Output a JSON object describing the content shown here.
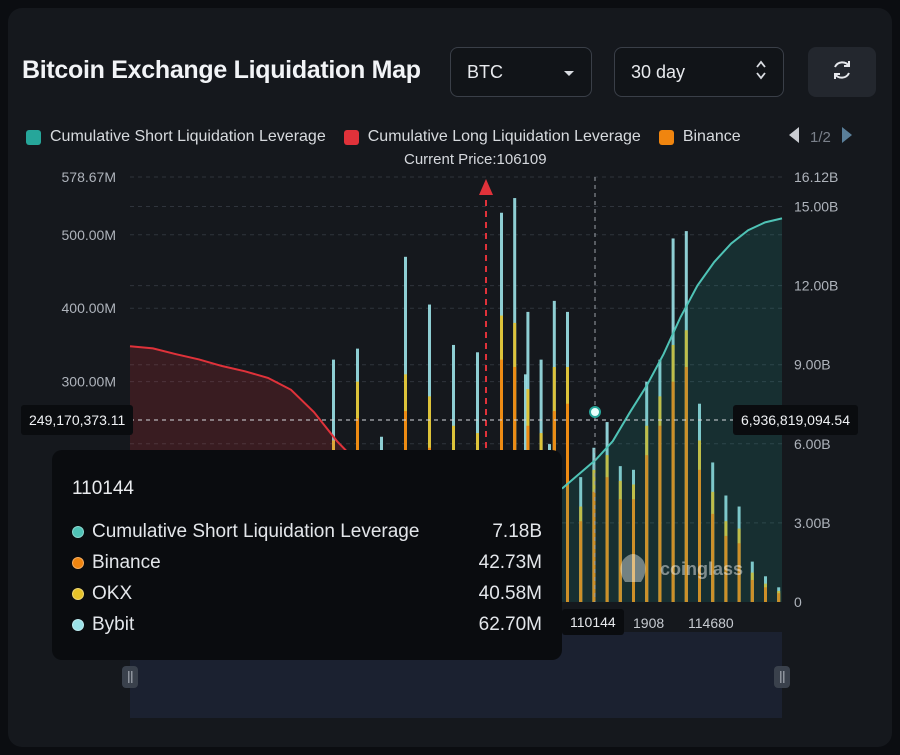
{
  "header": {
    "title": "Bitcoin Exchange Liquidation Map",
    "asset_select": "BTC",
    "range_select": "30 day"
  },
  "legend": {
    "items": [
      {
        "label": "Cumulative Short Liquidation Leverage",
        "color": "#26a69a"
      },
      {
        "label": "Cumulative Long Liquidation Leverage",
        "color": "#e0323a"
      },
      {
        "label": "Binance",
        "color": "#f0850f"
      }
    ],
    "page": "1/2"
  },
  "current_price": "Current Price:106109",
  "pointer": {
    "left_value": "249,170,373.11",
    "right_value": "6,936,819,094.54",
    "x_value": "110144"
  },
  "tooltip": {
    "price": "110144",
    "rows": [
      {
        "name": "Cumulative Short Liquidation Leverage",
        "value": "7.18B",
        "color": "#4fc3b6"
      },
      {
        "name": "Binance",
        "value": "42.73M",
        "color": "#f0850f"
      },
      {
        "name": "OKX",
        "value": "40.58M",
        "color": "#e6c229"
      },
      {
        "name": "Bybit",
        "value": "62.70M",
        "color": "#9be2e8"
      }
    ]
  },
  "watermark": "coinglass",
  "chart_data": {
    "type": "bar",
    "current_price": 106109,
    "x_tick_labels": [
      "1908",
      "114680"
    ],
    "left_axis": {
      "ticks": [
        "0",
        "300.00M",
        "400.00M",
        "500.00M",
        "578.67M"
      ],
      "ylim": [
        0,
        578670000
      ]
    },
    "right_axis": {
      "ticks": [
        "0",
        "3.00B",
        "6.00B",
        "9.00B",
        "12.00B",
        "15.00B",
        "16.12B"
      ],
      "ylim": [
        0,
        16120000000
      ]
    },
    "grid": true,
    "colors": {
      "short": "#26a69a",
      "long": "#e0323a",
      "binance": "#f0850f",
      "okx": "#e6c229",
      "bybit": "#9be2e8"
    },
    "bar_series": {
      "bybit_tops_m": [
        330,
        345,
        225,
        470,
        405,
        350,
        340,
        330,
        310,
        215,
        530,
        550,
        395,
        330,
        410,
        395,
        170,
        210,
        245,
        185,
        180,
        300,
        330,
        495,
        505,
        270,
        190,
        145,
        130,
        55,
        35,
        20
      ],
      "okx_tops_m": [
        220,
        300,
        200,
        310,
        280,
        240,
        230,
        180,
        160,
        140,
        390,
        380,
        290,
        230,
        320,
        320,
        130,
        180,
        200,
        165,
        160,
        240,
        280,
        350,
        370,
        220,
        150,
        110,
        100,
        40,
        25,
        15
      ],
      "binance_tops_m": [
        180,
        250,
        160,
        260,
        210,
        190,
        180,
        140,
        120,
        100,
        330,
        320,
        240,
        190,
        260,
        270,
        110,
        150,
        170,
        140,
        140,
        200,
        240,
        300,
        320,
        180,
        120,
        90,
        80,
        30,
        20,
        12
      ]
    },
    "series": [
      {
        "name": "Cumulative Long Liquidation Leverage",
        "side": "left_of_current_price",
        "values_b": [
          9.7,
          9.62,
          9.4,
          9.2,
          8.95,
          8.75,
          8.5,
          8.05,
          7.2,
          6.1,
          5.2
        ]
      },
      {
        "name": "Cumulative Short Liquidation Leverage",
        "side": "right_of_current_price",
        "values_b": [
          4.3,
          4.85,
          5.4,
          6.1,
          7.18,
          8.2,
          9.4,
          10.8,
          12.0,
          12.9,
          13.6,
          14.1,
          14.4,
          14.55
        ]
      }
    ]
  }
}
